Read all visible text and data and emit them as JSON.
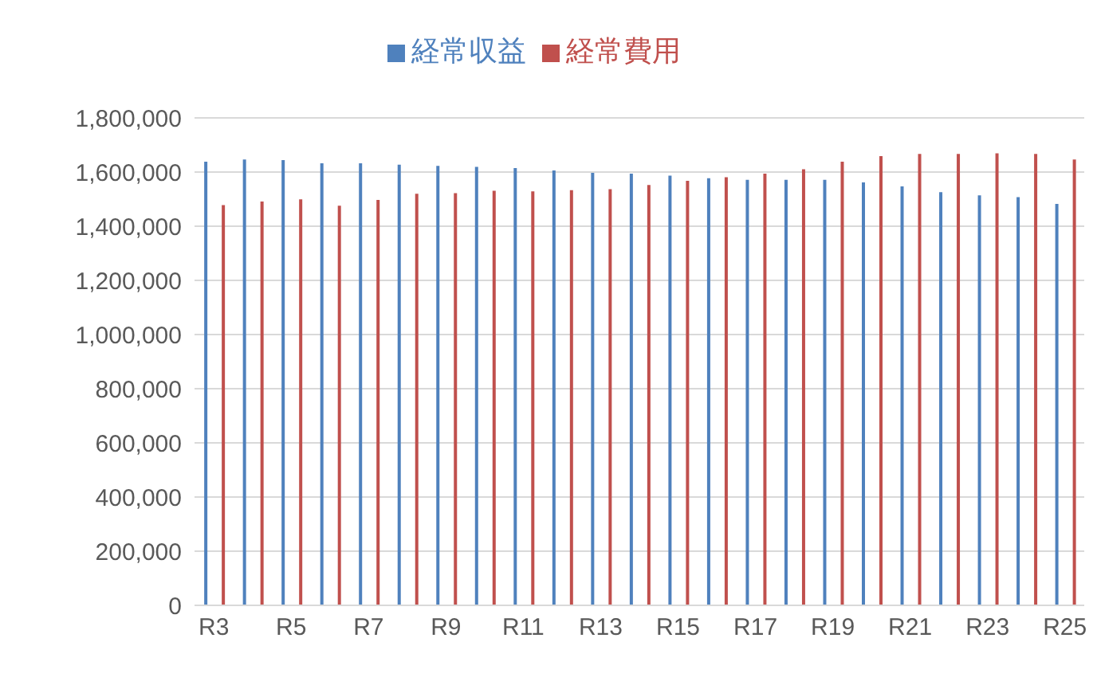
{
  "chart_data": {
    "type": "bar",
    "categories": [
      "R3",
      null,
      "R5",
      null,
      "R7",
      null,
      "R9",
      null,
      "R11",
      null,
      "R13",
      null,
      "R15",
      null,
      "R17",
      null,
      "R19",
      null,
      "R21",
      null,
      "R23",
      null,
      "R25"
    ],
    "series": [
      {
        "name": "経常収益",
        "color": "#4f81bd",
        "values": [
          1638000,
          1646000,
          1644000,
          1632000,
          1632000,
          1627000,
          1623000,
          1619000,
          1615000,
          1606000,
          1597000,
          1594000,
          1587000,
          1577000,
          1571000,
          1571000,
          1571000,
          1562000,
          1547000,
          1526000,
          1514000,
          1507000,
          1482000
        ]
      },
      {
        "name": "経常費用",
        "color": "#c0504d",
        "values": [
          1478000,
          1491000,
          1499000,
          1476000,
          1497000,
          1520000,
          1522000,
          1531000,
          1529000,
          1533000,
          1537000,
          1552000,
          1568000,
          1581000,
          1594000,
          1610000,
          1638000,
          1659000,
          1667000,
          1667000,
          1669000,
          1667000,
          1646000
        ]
      }
    ],
    "ylim": [
      0,
      1800000
    ],
    "yticks": [
      {
        "value": 0,
        "label": "0"
      },
      {
        "value": 200000,
        "label": "200,000"
      },
      {
        "value": 400000,
        "label": "400,000"
      },
      {
        "value": 600000,
        "label": "600,000"
      },
      {
        "value": 800000,
        "label": "800,000"
      },
      {
        "value": 1000000,
        "label": "1,000,000"
      },
      {
        "value": 1200000,
        "label": "1,200,000"
      },
      {
        "value": 1400000,
        "label": "1,400,000"
      },
      {
        "value": 1600000,
        "label": "1,600,000"
      },
      {
        "value": 1800000,
        "label": "1,800,000"
      }
    ],
    "grid": "y",
    "legend": "top"
  }
}
